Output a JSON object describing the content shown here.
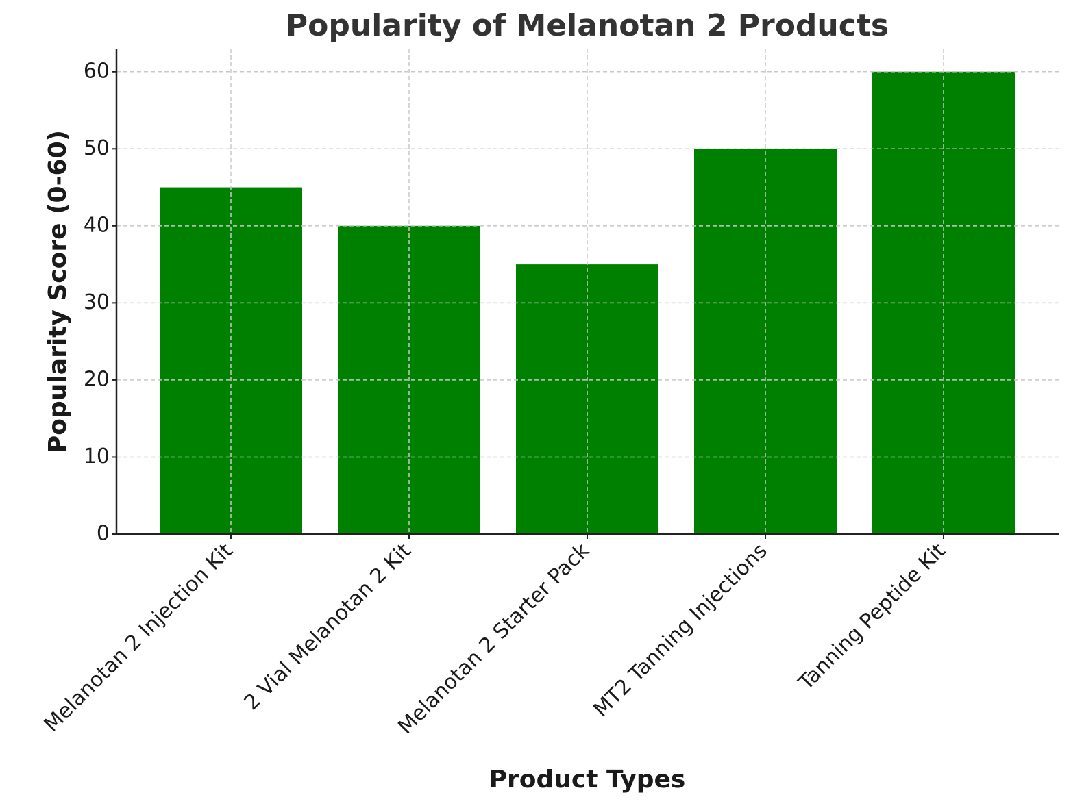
{
  "chart_data": {
    "type": "bar",
    "title": "Popularity of Melanotan 2 Products",
    "x_label": "Product Types",
    "y_label": "Popularity Score (0-60)",
    "categories": [
      "Melanotan 2 Injection Kit",
      "2 Vial Melanotan 2 Kit",
      "Melanotan 2 Starter Pack",
      "MT2 Tanning Injections",
      "Tanning Peptide Kit"
    ],
    "values": [
      45,
      40,
      35,
      50,
      60
    ],
    "color": "#008000",
    "ylim": [
      0,
      63
    ],
    "yticks": [
      0,
      10,
      20,
      30,
      40,
      50,
      60
    ],
    "grid": true
  }
}
